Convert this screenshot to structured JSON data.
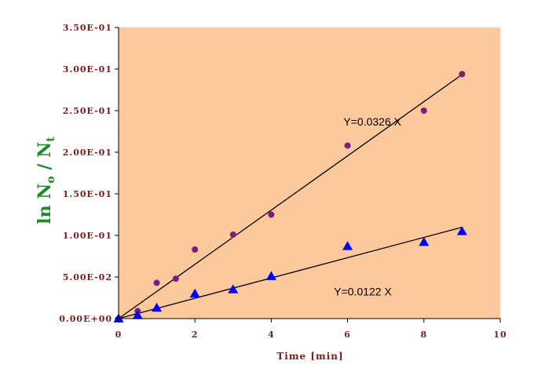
{
  "chart_data": {
    "type": "scatter",
    "xlabel": "Time [min]",
    "ylabel": {
      "main": "ln N",
      "sub0": "o",
      "slash": " / N",
      "sub1": "t"
    },
    "xlim": [
      0,
      10
    ],
    "ylim": [
      0,
      0.35
    ],
    "x_ticks": [
      {
        "value": 0,
        "label": "0"
      },
      {
        "value": 2,
        "label": "2"
      },
      {
        "value": 4,
        "label": "4"
      },
      {
        "value": 6,
        "label": "6"
      },
      {
        "value": 8,
        "label": "8"
      },
      {
        "value": 10,
        "label": "10"
      }
    ],
    "y_ticks": [
      {
        "value": 0,
        "label": "0.00E+00"
      },
      {
        "value": 0.05,
        "label": "5.00E-02"
      },
      {
        "value": 0.1,
        "label": "1.00E-01"
      },
      {
        "value": 0.15,
        "label": "1.50E-01"
      },
      {
        "value": 0.2,
        "label": "2.00E-01"
      },
      {
        "value": 0.25,
        "label": "2.50E-01"
      },
      {
        "value": 0.3,
        "label": "3.00E-01"
      },
      {
        "value": 0.35,
        "label": "3.50E-01"
      }
    ],
    "grid": false,
    "plot_background": "#fcc99d",
    "series": [
      {
        "marker": "circle",
        "color": "#7b1e7a",
        "x": [
          0,
          0.5,
          1,
          1.5,
          2,
          3,
          4,
          6,
          8,
          9
        ],
        "y": [
          0.0,
          0.009,
          0.043,
          0.048,
          0.083,
          0.101,
          0.125,
          0.208,
          0.25,
          0.294
        ],
        "fit": {
          "slope": 0.0326,
          "x_range": [
            0,
            9
          ],
          "color": "#000000"
        }
      },
      {
        "marker": "triangle",
        "color": "#0000ff",
        "x": [
          0,
          0.5,
          1,
          2,
          3,
          4,
          6,
          8,
          9
        ],
        "y": [
          0.0,
          0.004,
          0.013,
          0.03,
          0.035,
          0.051,
          0.087,
          0.092,
          0.105
        ],
        "fit": {
          "slope": 0.0122,
          "x_range": [
            0,
            9
          ],
          "color": "#000000"
        }
      }
    ],
    "annotations": [
      {
        "text": "Y=0.0326 X",
        "x": 6.65,
        "y": 0.232
      },
      {
        "text": "Y=0.0122 X",
        "x": 6.4,
        "y": 0.028
      }
    ]
  }
}
